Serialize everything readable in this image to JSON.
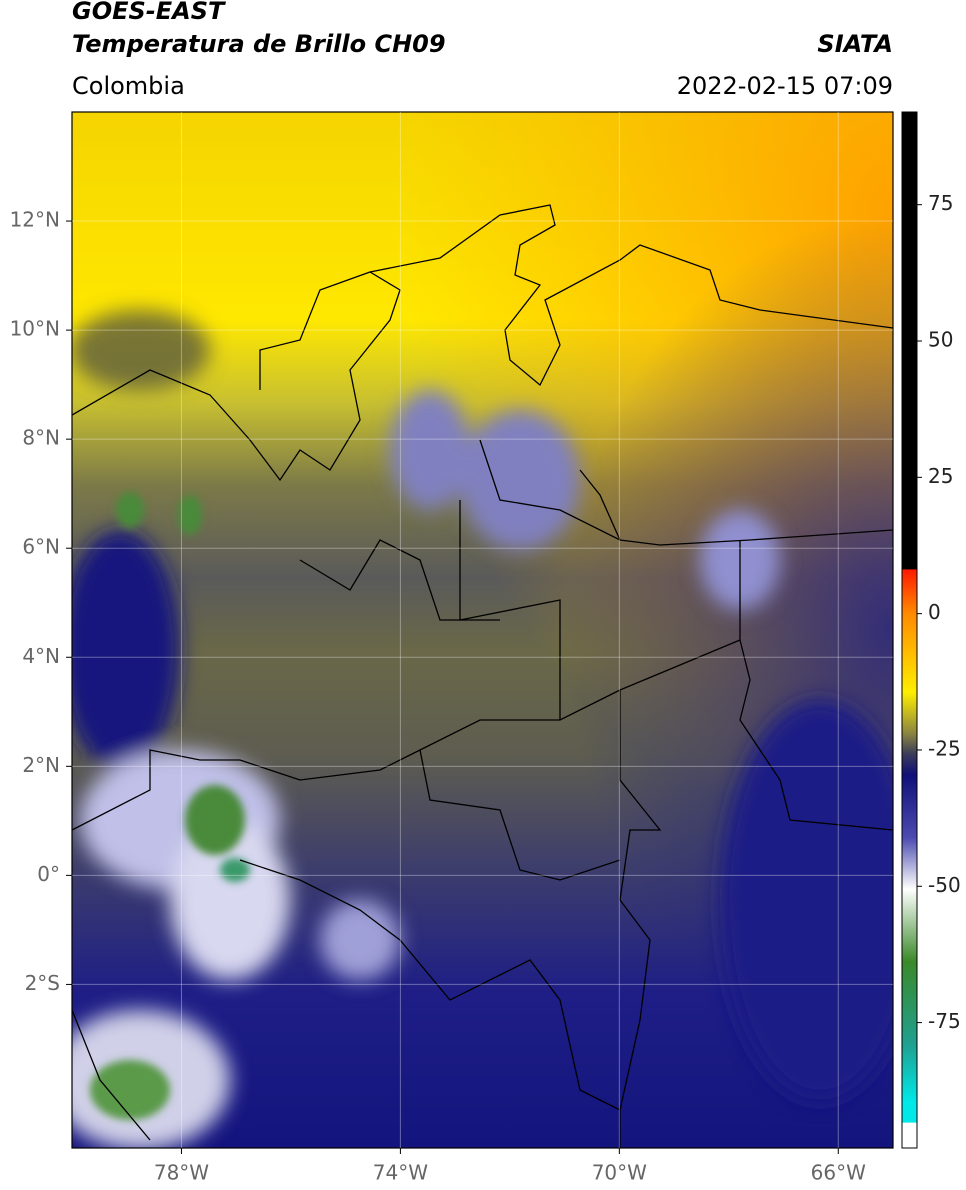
{
  "chart_data": {
    "type": "map",
    "title": "GOES-EAST",
    "subtitle": "Temperatura de Brillo CH09",
    "source": "SIATA",
    "region": "Colombia",
    "timestamp": "2022-02-15 07:09",
    "xlim": [
      -80,
      -65
    ],
    "ylim": [
      -5,
      14
    ],
    "xticks": [
      {
        "value": -78,
        "label": "78°W"
      },
      {
        "value": -74,
        "label": "74°W"
      },
      {
        "value": -70,
        "label": "70°W"
      },
      {
        "value": -66,
        "label": "66°W"
      }
    ],
    "yticks": [
      {
        "value": 12,
        "label": "12°N"
      },
      {
        "value": 10,
        "label": "10°N"
      },
      {
        "value": 8,
        "label": "8°N"
      },
      {
        "value": 6,
        "label": "6°N"
      },
      {
        "value": 4,
        "label": "4°N"
      },
      {
        "value": 2,
        "label": "2°N"
      },
      {
        "value": 0,
        "label": "0°"
      },
      {
        "value": -2,
        "label": "2°S"
      }
    ],
    "grid": true,
    "colorbar": {
      "lim": [
        -98,
        92
      ],
      "ticks": [
        75,
        50,
        25,
        0,
        -25,
        -50,
        -75
      ]
    }
  }
}
